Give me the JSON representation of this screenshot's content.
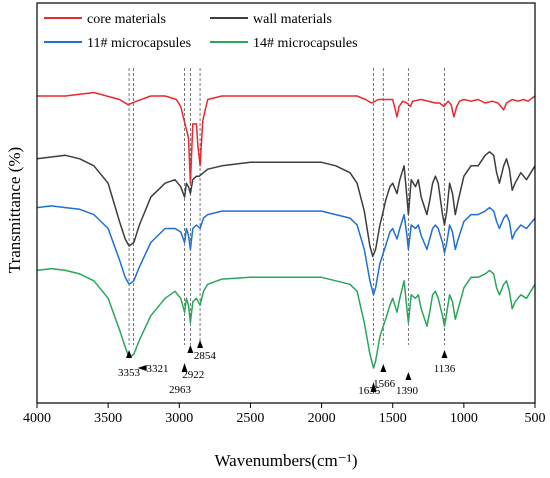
{
  "chart_data": {
    "type": "line",
    "title": "",
    "xlabel": "Wavenumbers(cm⁻¹)",
    "ylabel": "Transmittance (%)",
    "x_reversed": true,
    "xlim": [
      4000,
      500
    ],
    "xticks": [
      "4000",
      "3500",
      "3000",
      "2500",
      "2000",
      "1500",
      "1000",
      "500"
    ],
    "xtick_values": [
      4000,
      3500,
      3000,
      2500,
      2000,
      1500,
      1000,
      500
    ],
    "yticks_shown": false,
    "legend_position": "top-left",
    "series": [
      {
        "name": "core materials",
        "color": "#e8292d",
        "points": [
          [
            4000,
            0.8
          ],
          [
            3800,
            0.8
          ],
          [
            3600,
            0.81
          ],
          [
            3420,
            0.79
          ],
          [
            3360,
            0.775
          ],
          [
            3300,
            0.785
          ],
          [
            3200,
            0.8
          ],
          [
            3100,
            0.8
          ],
          [
            3020,
            0.79
          ],
          [
            2990,
            0.77
          ],
          [
            2960,
            0.72
          ],
          [
            2935,
            0.68
          ],
          [
            2922,
            0.55
          ],
          [
            2905,
            0.72
          ],
          [
            2880,
            0.72
          ],
          [
            2870,
            0.66
          ],
          [
            2854,
            0.6
          ],
          [
            2835,
            0.73
          ],
          [
            2800,
            0.79
          ],
          [
            2700,
            0.8
          ],
          [
            2500,
            0.8
          ],
          [
            2300,
            0.8
          ],
          [
            2000,
            0.8
          ],
          [
            1750,
            0.8
          ],
          [
            1690,
            0.79
          ],
          [
            1650,
            0.78
          ],
          [
            1600,
            0.79
          ],
          [
            1540,
            0.79
          ],
          [
            1500,
            0.79
          ],
          [
            1470,
            0.74
          ],
          [
            1455,
            0.77
          ],
          [
            1430,
            0.785
          ],
          [
            1400,
            0.78
          ],
          [
            1376,
            0.77
          ],
          [
            1360,
            0.785
          ],
          [
            1300,
            0.79
          ],
          [
            1200,
            0.78
          ],
          [
            1170,
            0.78
          ],
          [
            1140,
            0.77
          ],
          [
            1110,
            0.785
          ],
          [
            1090,
            0.775
          ],
          [
            1070,
            0.74
          ],
          [
            1050,
            0.77
          ],
          [
            1030,
            0.785
          ],
          [
            1000,
            0.79
          ],
          [
            950,
            0.785
          ],
          [
            900,
            0.79
          ],
          [
            850,
            0.78
          ],
          [
            800,
            0.785
          ],
          [
            760,
            0.78
          ],
          [
            720,
            0.76
          ],
          [
            700,
            0.78
          ],
          [
            660,
            0.79
          ],
          [
            620,
            0.785
          ],
          [
            580,
            0.79
          ],
          [
            550,
            0.785
          ],
          [
            500,
            0.8
          ]
        ]
      },
      {
        "name": "wall materials",
        "color": "#3d3d3d",
        "points": [
          [
            4000,
            0.62
          ],
          [
            3900,
            0.625
          ],
          [
            3800,
            0.63
          ],
          [
            3700,
            0.62
          ],
          [
            3600,
            0.6
          ],
          [
            3500,
            0.55
          ],
          [
            3420,
            0.44
          ],
          [
            3380,
            0.39
          ],
          [
            3353,
            0.37
          ],
          [
            3320,
            0.38
          ],
          [
            3280,
            0.43
          ],
          [
            3200,
            0.51
          ],
          [
            3100,
            0.55
          ],
          [
            3030,
            0.56
          ],
          [
            2990,
            0.54
          ],
          [
            2963,
            0.51
          ],
          [
            2950,
            0.55
          ],
          [
            2935,
            0.54
          ],
          [
            2922,
            0.52
          ],
          [
            2905,
            0.56
          ],
          [
            2880,
            0.57
          ],
          [
            2860,
            0.57
          ],
          [
            2800,
            0.59
          ],
          [
            2700,
            0.6
          ],
          [
            2500,
            0.61
          ],
          [
            2300,
            0.61
          ],
          [
            2100,
            0.61
          ],
          [
            2000,
            0.61
          ],
          [
            1900,
            0.6
          ],
          [
            1800,
            0.58
          ],
          [
            1750,
            0.55
          ],
          [
            1700,
            0.47
          ],
          [
            1660,
            0.37
          ],
          [
            1640,
            0.34
          ],
          [
            1620,
            0.36
          ],
          [
            1590,
            0.43
          ],
          [
            1566,
            0.47
          ],
          [
            1550,
            0.5
          ],
          [
            1520,
            0.54
          ],
          [
            1500,
            0.55
          ],
          [
            1470,
            0.52
          ],
          [
            1450,
            0.56
          ],
          [
            1420,
            0.6
          ],
          [
            1400,
            0.51
          ],
          [
            1390,
            0.46
          ],
          [
            1370,
            0.56
          ],
          [
            1340,
            0.54
          ],
          [
            1320,
            0.56
          ],
          [
            1300,
            0.51
          ],
          [
            1260,
            0.46
          ],
          [
            1240,
            0.5
          ],
          [
            1220,
            0.55
          ],
          [
            1200,
            0.57
          ],
          [
            1180,
            0.55
          ],
          [
            1150,
            0.46
          ],
          [
            1136,
            0.43
          ],
          [
            1120,
            0.47
          ],
          [
            1100,
            0.55
          ],
          [
            1080,
            0.52
          ],
          [
            1060,
            0.46
          ],
          [
            1040,
            0.5
          ],
          [
            1000,
            0.57
          ],
          [
            950,
            0.6
          ],
          [
            900,
            0.6
          ],
          [
            850,
            0.63
          ],
          [
            820,
            0.64
          ],
          [
            790,
            0.63
          ],
          [
            770,
            0.58
          ],
          [
            750,
            0.55
          ],
          [
            720,
            0.6
          ],
          [
            700,
            0.62
          ],
          [
            680,
            0.59
          ],
          [
            660,
            0.53
          ],
          [
            640,
            0.55
          ],
          [
            600,
            0.58
          ],
          [
            560,
            0.56
          ],
          [
            500,
            0.6
          ]
        ]
      },
      {
        "name": "11# microcapsules",
        "color": "#1f6fd6",
        "points": [
          [
            4000,
            0.48
          ],
          [
            3900,
            0.485
          ],
          [
            3800,
            0.48
          ],
          [
            3700,
            0.475
          ],
          [
            3600,
            0.46
          ],
          [
            3500,
            0.42
          ],
          [
            3420,
            0.33
          ],
          [
            3380,
            0.28
          ],
          [
            3353,
            0.26
          ],
          [
            3320,
            0.27
          ],
          [
            3280,
            0.31
          ],
          [
            3200,
            0.38
          ],
          [
            3100,
            0.42
          ],
          [
            3030,
            0.42
          ],
          [
            2990,
            0.41
          ],
          [
            2963,
            0.38
          ],
          [
            2950,
            0.42
          ],
          [
            2935,
            0.4
          ],
          [
            2922,
            0.36
          ],
          [
            2905,
            0.42
          ],
          [
            2880,
            0.43
          ],
          [
            2854,
            0.42
          ],
          [
            2830,
            0.45
          ],
          [
            2800,
            0.46
          ],
          [
            2700,
            0.47
          ],
          [
            2500,
            0.47
          ],
          [
            2300,
            0.47
          ],
          [
            2100,
            0.47
          ],
          [
            2000,
            0.47
          ],
          [
            1900,
            0.46
          ],
          [
            1800,
            0.45
          ],
          [
            1750,
            0.43
          ],
          [
            1700,
            0.36
          ],
          [
            1660,
            0.27
          ],
          [
            1635,
            0.23
          ],
          [
            1620,
            0.25
          ],
          [
            1590,
            0.32
          ],
          [
            1566,
            0.35
          ],
          [
            1550,
            0.37
          ],
          [
            1520,
            0.41
          ],
          [
            1500,
            0.42
          ],
          [
            1470,
            0.39
          ],
          [
            1450,
            0.42
          ],
          [
            1420,
            0.46
          ],
          [
            1400,
            0.4
          ],
          [
            1390,
            0.36
          ],
          [
            1370,
            0.43
          ],
          [
            1340,
            0.42
          ],
          [
            1320,
            0.43
          ],
          [
            1300,
            0.4
          ],
          [
            1260,
            0.36
          ],
          [
            1240,
            0.39
          ],
          [
            1220,
            0.42
          ],
          [
            1200,
            0.43
          ],
          [
            1180,
            0.42
          ],
          [
            1150,
            0.38
          ],
          [
            1136,
            0.35
          ],
          [
            1120,
            0.38
          ],
          [
            1100,
            0.43
          ],
          [
            1080,
            0.41
          ],
          [
            1060,
            0.36
          ],
          [
            1040,
            0.39
          ],
          [
            1000,
            0.44
          ],
          [
            950,
            0.46
          ],
          [
            900,
            0.46
          ],
          [
            850,
            0.47
          ],
          [
            820,
            0.48
          ],
          [
            790,
            0.47
          ],
          [
            770,
            0.44
          ],
          [
            750,
            0.42
          ],
          [
            720,
            0.45
          ],
          [
            700,
            0.46
          ],
          [
            680,
            0.44
          ],
          [
            660,
            0.39
          ],
          [
            640,
            0.41
          ],
          [
            600,
            0.43
          ],
          [
            560,
            0.42
          ],
          [
            500,
            0.45
          ]
        ]
      },
      {
        "name": "14# microcapsules",
        "color": "#2aa65a",
        "points": [
          [
            4000,
            0.3
          ],
          [
            3900,
            0.305
          ],
          [
            3800,
            0.3
          ],
          [
            3700,
            0.29
          ],
          [
            3600,
            0.27
          ],
          [
            3500,
            0.22
          ],
          [
            3420,
            0.13
          ],
          [
            3380,
            0.08
          ],
          [
            3353,
            0.05
          ],
          [
            3320,
            0.06
          ],
          [
            3280,
            0.1
          ],
          [
            3200,
            0.17
          ],
          [
            3100,
            0.22
          ],
          [
            3030,
            0.24
          ],
          [
            2990,
            0.22
          ],
          [
            2963,
            0.18
          ],
          [
            2950,
            0.22
          ],
          [
            2935,
            0.2
          ],
          [
            2922,
            0.15
          ],
          [
            2905,
            0.21
          ],
          [
            2880,
            0.22
          ],
          [
            2854,
            0.2
          ],
          [
            2830,
            0.24
          ],
          [
            2800,
            0.26
          ],
          [
            2700,
            0.275
          ],
          [
            2500,
            0.28
          ],
          [
            2300,
            0.28
          ],
          [
            2100,
            0.28
          ],
          [
            2000,
            0.28
          ],
          [
            1900,
            0.27
          ],
          [
            1800,
            0.26
          ],
          [
            1750,
            0.24
          ],
          [
            1700,
            0.15
          ],
          [
            1660,
            0.06
          ],
          [
            1635,
            0.02
          ],
          [
            1620,
            0.04
          ],
          [
            1590,
            0.11
          ],
          [
            1566,
            0.14
          ],
          [
            1550,
            0.16
          ],
          [
            1520,
            0.2
          ],
          [
            1500,
            0.22
          ],
          [
            1470,
            0.18
          ],
          [
            1450,
            0.22
          ],
          [
            1420,
            0.27
          ],
          [
            1400,
            0.19
          ],
          [
            1390,
            0.15
          ],
          [
            1370,
            0.23
          ],
          [
            1340,
            0.22
          ],
          [
            1320,
            0.23
          ],
          [
            1300,
            0.19
          ],
          [
            1260,
            0.14
          ],
          [
            1240,
            0.18
          ],
          [
            1220,
            0.23
          ],
          [
            1200,
            0.24
          ],
          [
            1180,
            0.22
          ],
          [
            1150,
            0.17
          ],
          [
            1136,
            0.14
          ],
          [
            1120,
            0.18
          ],
          [
            1100,
            0.23
          ],
          [
            1080,
            0.21
          ],
          [
            1060,
            0.16
          ],
          [
            1040,
            0.19
          ],
          [
            1000,
            0.25
          ],
          [
            950,
            0.28
          ],
          [
            900,
            0.28
          ],
          [
            850,
            0.29
          ],
          [
            820,
            0.3
          ],
          [
            790,
            0.29
          ],
          [
            770,
            0.25
          ],
          [
            750,
            0.23
          ],
          [
            720,
            0.26
          ],
          [
            700,
            0.27
          ],
          [
            680,
            0.24
          ],
          [
            660,
            0.19
          ],
          [
            640,
            0.21
          ],
          [
            600,
            0.23
          ],
          [
            560,
            0.22
          ],
          [
            500,
            0.26
          ]
        ]
      }
    ],
    "reference_lines": [
      3353,
      3321,
      2963,
      2922,
      2854,
      1635,
      1566,
      1390,
      1136
    ],
    "annotations": [
      {
        "label": "3353",
        "x": 3353
      },
      {
        "label": "3321",
        "x": 3321
      },
      {
        "label": "2963",
        "x": 2963
      },
      {
        "label": "2922",
        "x": 2922
      },
      {
        "label": "2854",
        "x": 2854
      },
      {
        "label": "1635",
        "x": 1635
      },
      {
        "label": "1566",
        "x": 1566
      },
      {
        "label": "1390",
        "x": 1390
      },
      {
        "label": "1136",
        "x": 1136
      }
    ]
  }
}
